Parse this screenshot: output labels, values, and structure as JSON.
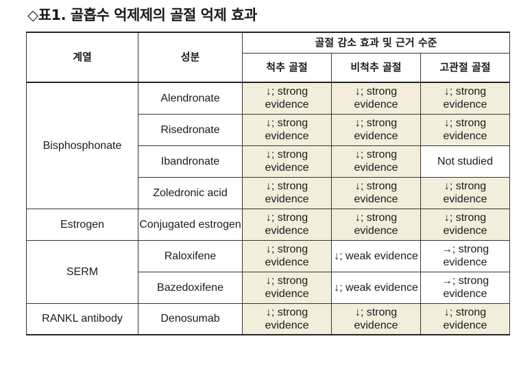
{
  "title": "◇표1. 골흡수 억제제의 골절 억제 효과",
  "headers": {
    "class": "계열",
    "ingredient": "성분",
    "group": "골절 감소 효과 및 근거 수준",
    "vertebral": "척추 골절",
    "nonvertebral": "비척추 골절",
    "hip": "고관절 골절"
  },
  "rows": [
    {
      "class": "Bisphosphonate",
      "ingredient": "Alendronate",
      "v": "↓; strong evidence",
      "nv": "↓; strong evidence",
      "hip": "↓; strong evidence"
    },
    {
      "ingredient": "Risedronate",
      "v": "↓; strong evidence",
      "nv": "↓; strong evidence",
      "hip": "↓; strong evidence"
    },
    {
      "ingredient": "Ibandronate",
      "v": "↓; strong evidence",
      "nv": "↓; strong evidence",
      "hip": "Not studied"
    },
    {
      "ingredient": "Zoledronic acid",
      "v": "↓; strong evidence",
      "nv": "↓; strong evidence",
      "hip": "↓; strong evidence"
    },
    {
      "class": "Estrogen",
      "ingredient": "Conjugated estrogen",
      "v": "↓; strong evidence",
      "nv": "↓; strong evidence",
      "hip": "↓; strong evidence"
    },
    {
      "class": "SERM",
      "ingredient": "Raloxifene",
      "v": "↓; strong evidence",
      "nv": "↓; weak evidence",
      "hip": "→; strong evidence"
    },
    {
      "ingredient": "Bazedoxifene",
      "v": "↓; strong evidence",
      "nv": "↓; weak evidence",
      "hip": "→; strong evidence"
    },
    {
      "class": "RANKL antibody",
      "ingredient": "Denosumab",
      "v": "↓; strong evidence",
      "nv": "↓; strong evidence",
      "hip": "↓; strong evidence"
    }
  ],
  "colors": {
    "shade": "#f2eedb",
    "border": "#333333"
  }
}
